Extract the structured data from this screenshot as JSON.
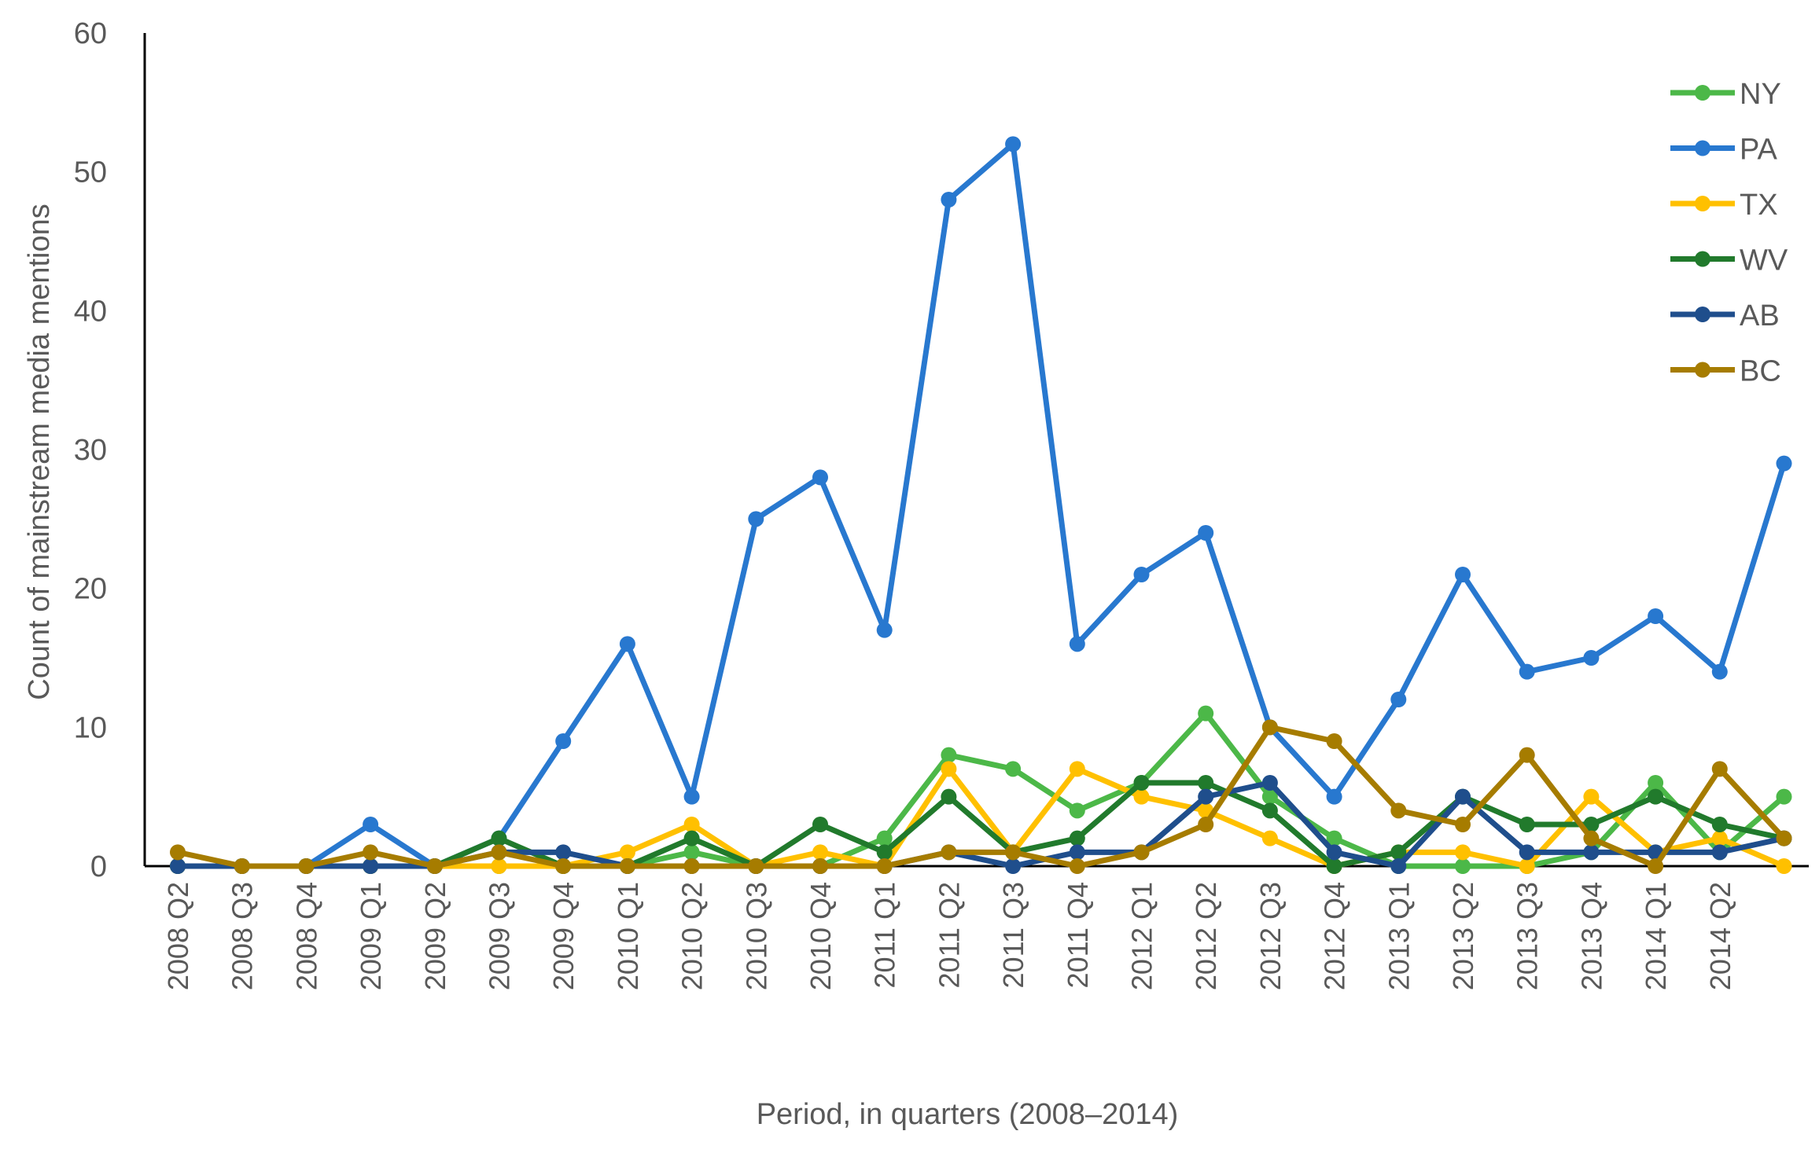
{
  "chart_data": {
    "type": "line",
    "xlabel": "Period, in quarters (2008–2014)",
    "ylabel": "Count of mainstream media mentions",
    "ylim": [
      0,
      60
    ],
    "yticks": [
      0,
      10,
      20,
      30,
      40,
      50,
      60
    ],
    "grid": false,
    "legend_position": "top-right",
    "categories": [
      "2008 Q2",
      "2008 Q3",
      "2008 Q4",
      "2009 Q1",
      "2009 Q2",
      "2009 Q3",
      "2009 Q4",
      "2010 Q1",
      "2010 Q2",
      "2010 Q3",
      "2010 Q4",
      "2011 Q1",
      "2011 Q2",
      "2011 Q3",
      "2011 Q4",
      "2012 Q1",
      "2012 Q2",
      "2012 Q3",
      "2012 Q4",
      "2013 Q1",
      "2013 Q2",
      "2013 Q3",
      "2013 Q4",
      "2014 Q1",
      "2014 Q2",
      ""
    ],
    "series": [
      {
        "name": "NY",
        "color": "#4CB848",
        "values": [
          0,
          0,
          0,
          0,
          0,
          0,
          0,
          0,
          1,
          0,
          0,
          2,
          8,
          7,
          4,
          6,
          11,
          5,
          2,
          0,
          0,
          0,
          1,
          6,
          1,
          5
        ]
      },
      {
        "name": "PA",
        "color": "#2878CF",
        "values": [
          0,
          0,
          0,
          3,
          0,
          2,
          9,
          16,
          5,
          25,
          28,
          17,
          48,
          52,
          16,
          21,
          24,
          10,
          5,
          12,
          21,
          14,
          15,
          18,
          14,
          29
        ]
      },
      {
        "name": "TX",
        "color": "#FFC000",
        "values": [
          0,
          0,
          0,
          0,
          0,
          0,
          0,
          1,
          3,
          0,
          1,
          0,
          7,
          1,
          7,
          5,
          4,
          2,
          0,
          1,
          1,
          0,
          5,
          1,
          2,
          0
        ]
      },
      {
        "name": "WV",
        "color": "#217A2C",
        "values": [
          0,
          0,
          0,
          0,
          0,
          2,
          0,
          0,
          2,
          0,
          3,
          1,
          5,
          1,
          2,
          6,
          6,
          4,
          0,
          1,
          5,
          3,
          3,
          5,
          3,
          2
        ]
      },
      {
        "name": "AB",
        "color": "#1F4E8C",
        "values": [
          0,
          0,
          0,
          0,
          0,
          1,
          1,
          0,
          0,
          0,
          0,
          0,
          1,
          0,
          1,
          1,
          5,
          6,
          1,
          0,
          5,
          1,
          1,
          1,
          1,
          2
        ]
      },
      {
        "name": "BC",
        "color": "#A67C00",
        "values": [
          1,
          0,
          0,
          1,
          0,
          1,
          0,
          0,
          0,
          0,
          0,
          0,
          1,
          1,
          0,
          1,
          3,
          10,
          9,
          4,
          3,
          8,
          2,
          0,
          7,
          2
        ]
      }
    ]
  }
}
